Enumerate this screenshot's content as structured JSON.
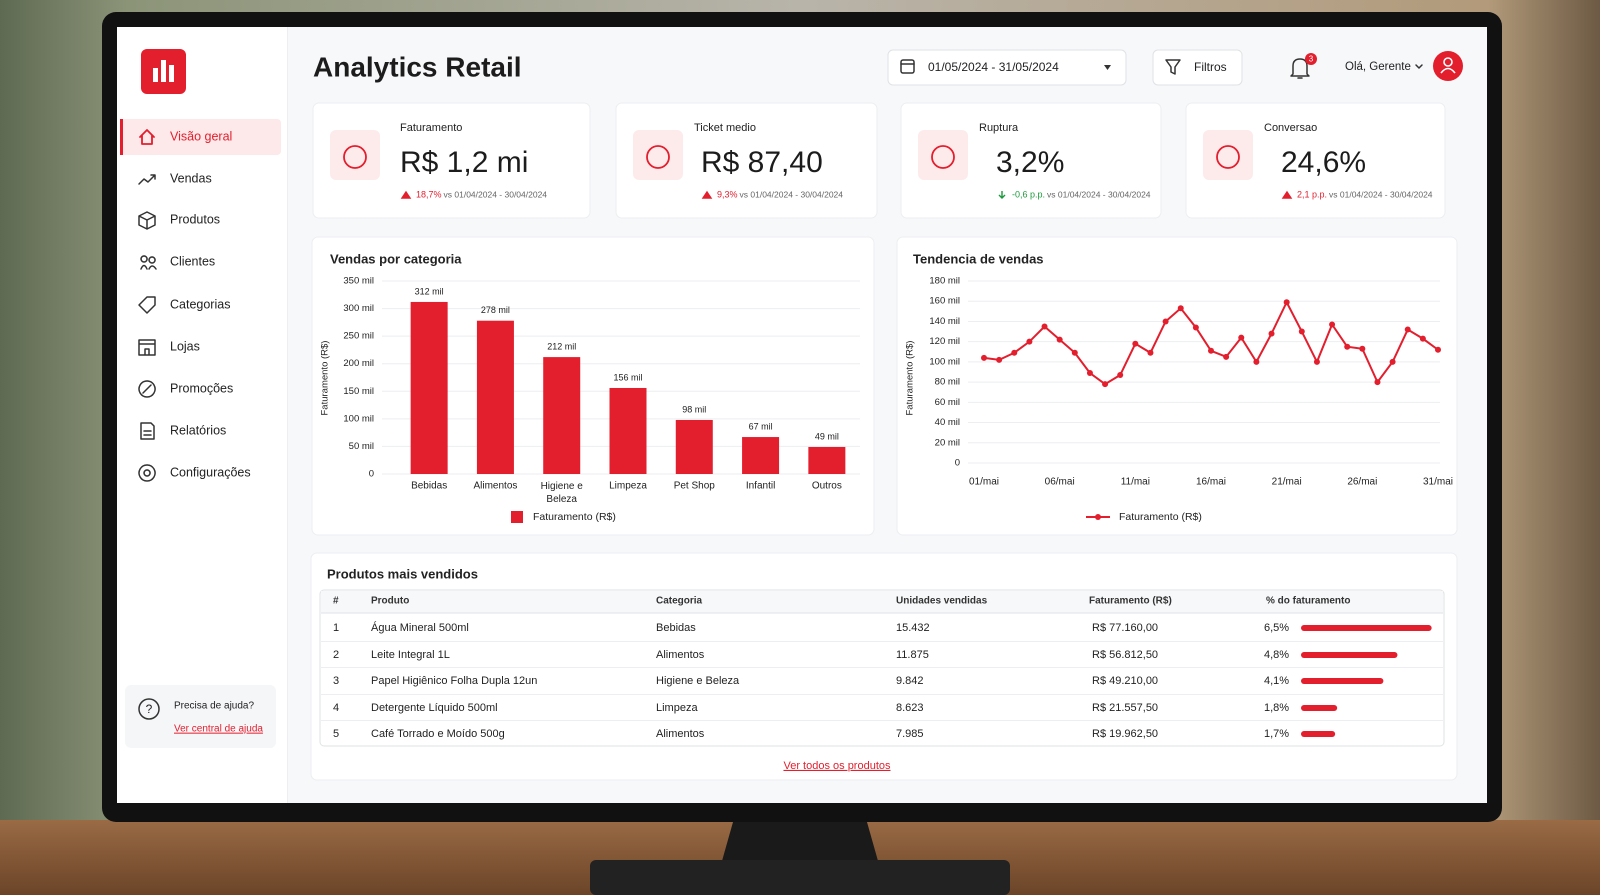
{
  "header": {
    "title": "Analytics Retail",
    "date_range": "01/05/2024 - 31/05/2024",
    "filter": "Filtros",
    "notifications": "3",
    "user": "Olá, Gerente"
  },
  "sidebar": {
    "items": [
      "Visão geral",
      "Vendas",
      "Produtos",
      "Clientes",
      "Categorias",
      "Lojas",
      "Promoções",
      "Relatórios",
      "Configurações"
    ],
    "help": {
      "title": "Precisa de ajuda?",
      "link": "Ver central de ajuda"
    }
  },
  "kpis": [
    {
      "label": "Faturamento",
      "value": "R$ 1,2 mi",
      "change": "18,7%",
      "comparison": "vs 01/04/2024 - 30/04/2024",
      "trend": "up"
    },
    {
      "label": "Ticket medio",
      "value": "R$ 87,40",
      "change": "9,3%",
      "comparison": "vs 01/04/2024 - 30/04/2024",
      "trend": "up"
    },
    {
      "label": "Ruptura",
      "value": "3,2%",
      "change": "-0,6 p.p.",
      "comparison": "vs 01/04/2024 - 30/04/2024",
      "trend": "down"
    },
    {
      "label": "Conversao",
      "value": "24,6%",
      "change": "2,1 p.p.",
      "comparison": "vs 01/04/2024 - 30/04/2024",
      "trend": "up"
    }
  ],
  "chart_data": [
    {
      "type": "bar",
      "title": "Vendas por categoria",
      "ylabel": "Faturamento (R$)",
      "categories": [
        "Bebidas",
        "Alimentos",
        "Higiene e Beleza",
        "Limpeza",
        "Pet Shop",
        "Infantil",
        "Outros"
      ],
      "series": [
        {
          "name": "Faturamento (R$)",
          "color": "#e31e2d",
          "values": [
            312,
            278,
            212,
            156,
            98,
            67,
            49
          ],
          "value_labels": [
            "312 mil",
            "278 mil",
            "212 mil",
            "156 mil",
            "98 mil",
            "67 mil",
            "49 mil"
          ]
        }
      ],
      "ylim": [
        0,
        350
      ],
      "yticks": [
        0,
        {
          "value": 50,
          "label": "50 mil"
        },
        {
          "value": 100,
          "label": "100 mil"
        },
        {
          "value": 150,
          "label": "150 mil"
        },
        {
          "value": 200,
          "label": "200 mil"
        },
        {
          "value": 250,
          "label": "250 mil"
        },
        {
          "value": 300,
          "label": "300 mil"
        },
        {
          "value": 350,
          "label": "350 mil"
        }
      ],
      "grid": true
    },
    {
      "type": "line",
      "title": "Tendencia de vendas",
      "ylabel": "Faturamento (R$)",
      "categories": [
        "01/mai",
        null,
        null,
        null,
        null,
        "06/mai",
        null,
        null,
        null,
        null,
        "11/mai",
        null,
        null,
        null,
        null,
        "16/mai",
        null,
        null,
        null,
        null,
        "21/mai",
        null,
        null,
        null,
        null,
        "26/mai",
        null,
        null,
        null,
        null,
        "31/mai"
      ],
      "series": [
        {
          "name": "Faturamento (R$)",
          "color": "#e31e2d",
          "values": [
            104,
            102,
            109,
            120,
            135,
            122,
            109,
            89,
            78,
            87,
            118,
            109,
            140,
            153,
            134,
            111,
            105,
            124,
            100,
            128,
            159,
            130,
            100,
            137,
            115,
            113,
            80,
            100,
            132,
            123,
            112
          ]
        }
      ],
      "ylim": [
        0,
        180
      ],
      "yticks": [
        0,
        {
          "value": 20,
          "label": "20 mil"
        },
        {
          "value": 40,
          "label": "40 mil"
        },
        {
          "value": 60,
          "label": "60 mil"
        },
        {
          "value": 80,
          "label": "80 mil"
        },
        {
          "value": 100,
          "label": "100 mil"
        },
        {
          "value": 120,
          "label": "120 mil"
        },
        {
          "value": 140,
          "label": "140 mil"
        },
        {
          "value": 160,
          "label": "160 mil"
        },
        {
          "value": 180,
          "label": "180 mil"
        }
      ],
      "grid": true
    }
  ],
  "table": {
    "title": "Produtos mais vendidos",
    "columns": [
      "#",
      "Produto",
      "Categoria",
      "Unidades vendidas",
      "Faturamento (R$)",
      "% do faturamento"
    ],
    "rows": [
      [
        "1",
        "Água Mineral 500ml",
        "Bebidas",
        "15.432",
        "R$ 77.160,00"
      ],
      [
        "2",
        "Leite Integral 1L",
        "Alimentos",
        "11.875",
        "R$ 56.812,50"
      ],
      [
        "3",
        "Papel Higiênico Folha Dupla 12un",
        "Higiene e Beleza",
        "9.842",
        "R$ 49.210,00"
      ],
      [
        "4",
        "Detergente Líquido 500ml",
        "Limpeza",
        "8.623",
        "R$ 21.557,50"
      ],
      [
        "5",
        "Café Torrado e Moído 500g",
        "Alimentos",
        "7.985",
        "R$ 19.962,50"
      ]
    ],
    "share": {
      "color": "#e31e2d",
      "values": [
        6.5,
        4.8,
        4.1,
        1.8,
        1.7
      ],
      "value_labels": [
        "6,5%",
        "4,8%",
        "4,1%",
        "1,8%",
        "1,7%"
      ]
    },
    "link": "Ver todos os produtos"
  }
}
